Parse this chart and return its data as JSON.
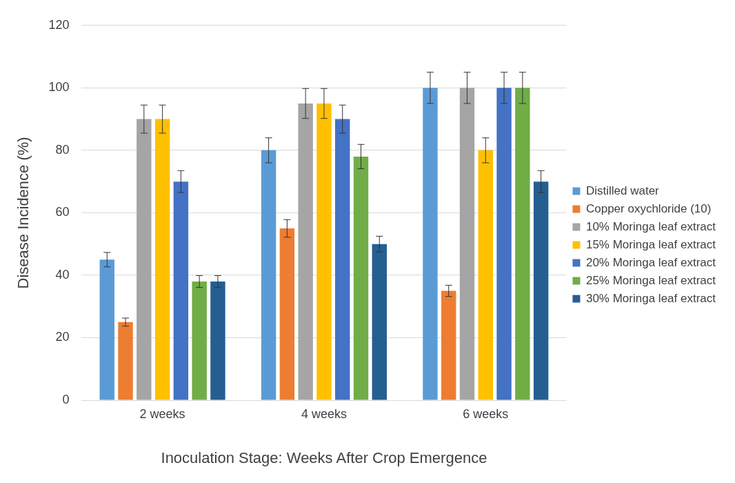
{
  "chart_data": {
    "type": "bar",
    "xlabel": "Inoculation Stage: Weeks After Crop Emergence",
    "ylabel": "Disease Incidence (%)",
    "categories": [
      "2 weeks",
      "4 weeks",
      "6 weeks"
    ],
    "series": [
      {
        "name": "Distilled water",
        "color": "#5b9bd5",
        "values": [
          45,
          80,
          100
        ],
        "errors": [
          2.3,
          4,
          5
        ]
      },
      {
        "name": "Copper oxychloride (10)",
        "color": "#ed7d31",
        "values": [
          25,
          55,
          35
        ],
        "errors": [
          1.3,
          2.8,
          1.8
        ]
      },
      {
        "name": "10% Moringa leaf extract",
        "color": "#a5a5a5",
        "values": [
          90,
          95,
          100
        ],
        "errors": [
          4.5,
          4.8,
          5
        ]
      },
      {
        "name": "15% Moringa leaf extract",
        "color": "#ffc000",
        "values": [
          90,
          95,
          80
        ],
        "errors": [
          4.5,
          4.8,
          4
        ]
      },
      {
        "name": "20% Moringa leaf extract",
        "color": "#4472c4",
        "values": [
          70,
          90,
          100
        ],
        "errors": [
          3.5,
          4.5,
          5
        ]
      },
      {
        "name": "25% Moringa leaf extract",
        "color": "#70ad47",
        "values": [
          38,
          78,
          100
        ],
        "errors": [
          1.9,
          3.9,
          5
        ]
      },
      {
        "name": "30% Moringa leaf extract",
        "color": "#255e91",
        "values": [
          38,
          50,
          70
        ],
        "errors": [
          1.9,
          2.5,
          3.5
        ]
      }
    ],
    "ylim": [
      0,
      120
    ],
    "yticks": [
      0,
      20,
      40,
      60,
      80,
      100,
      120
    ],
    "grid": "y",
    "legend": "right"
  }
}
